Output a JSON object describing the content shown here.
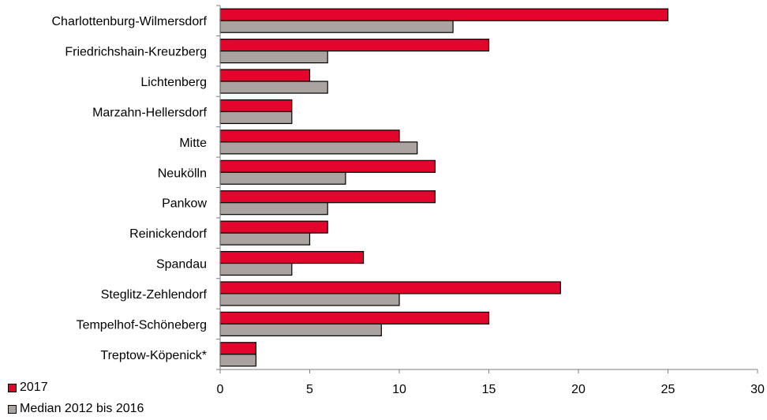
{
  "chart_data": {
    "type": "bar",
    "orientation": "horizontal",
    "categories": [
      "Charlottenburg-Wilmersdorf",
      "Friedrichshain-Kreuzberg",
      "Lichtenberg",
      "Marzahn-Hellersdorf",
      "Mitte",
      "Neukölln",
      "Pankow",
      "Reinickendorf",
      "Spandau",
      "Steglitz-Zehlendorf",
      "Tempelhof-Schöneberg",
      "Treptow-Köpenick*"
    ],
    "series": [
      {
        "name": "2017",
        "color": "#e2062c",
        "values": [
          25,
          15,
          5,
          4,
          10,
          12,
          12,
          6,
          8,
          19,
          15,
          2
        ]
      },
      {
        "name": "Median 2012 bis 2016",
        "color": "#aaa39f",
        "values": [
          13,
          6,
          6,
          4,
          11,
          7,
          6,
          5,
          4,
          10,
          9,
          2
        ]
      }
    ],
    "xlim": [
      0,
      30
    ],
    "xticks": [
      "0",
      "5",
      "10",
      "15",
      "20",
      "25",
      "30"
    ],
    "grid": false,
    "legend_position": "bottom-left"
  }
}
